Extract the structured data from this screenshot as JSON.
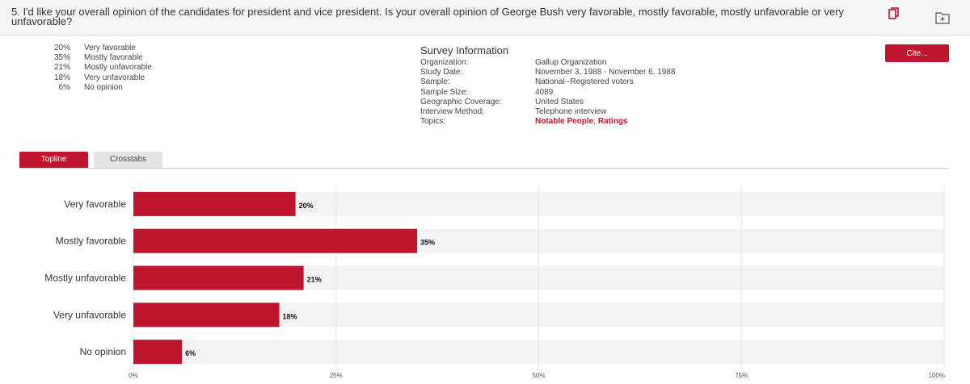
{
  "question": {
    "text": "5. I'd like your overall opinion of the candidates for president and vice president. Is your overall opinion of George Bush very favorable, mostly favorable, mostly unfavorable or very unfavorable?"
  },
  "icons": {
    "copy": "copy-icon",
    "folder": "folder-add-icon"
  },
  "results": [
    {
      "pct": "20%",
      "label": "Very favorable"
    },
    {
      "pct": "35%",
      "label": "Mostly favorable"
    },
    {
      "pct": "21%",
      "label": "Mostly unfavorable"
    },
    {
      "pct": "18%",
      "label": "Very unfavorable"
    },
    {
      "pct": "6%",
      "label": "No opinion"
    }
  ],
  "survey_info": {
    "title": "Survey Information",
    "rows": [
      {
        "key": "Organization:",
        "value": "Gallup Organization"
      },
      {
        "key": "Study Date:",
        "value": "November 3, 1988 - November 6, 1988"
      },
      {
        "key": "Sample:",
        "value": "National--Registered voters"
      },
      {
        "key": "Sample Size:",
        "value": "4089"
      },
      {
        "key": "Geographic Coverage:",
        "value": "United States"
      },
      {
        "key": "Interview Method:",
        "value": "Telephone interview"
      }
    ],
    "topics_key": "Topics:",
    "topics": [
      "Notable People",
      "Ratings"
    ],
    "topics_sep": "; "
  },
  "cite_label": "Cite...",
  "tabs": [
    {
      "label": "Topline",
      "active": true
    },
    {
      "label": "Crosstabs",
      "active": false
    }
  ],
  "colors": {
    "accent": "#c0152f",
    "track": "#f3f3f3",
    "grid": "#e6e6e6"
  },
  "chart_data": {
    "type": "bar",
    "orientation": "horizontal",
    "categories": [
      "Very favorable",
      "Mostly favorable",
      "Mostly unfavorable",
      "Very unfavorable",
      "No opinion"
    ],
    "values": [
      20,
      35,
      21,
      18,
      6
    ],
    "value_labels": [
      "20%",
      "35%",
      "21%",
      "18%",
      "6%"
    ],
    "xlim": [
      0,
      100
    ],
    "xticks": [
      0,
      25,
      50,
      75,
      100
    ],
    "xtick_labels": [
      "0%",
      "25%",
      "50%",
      "75%",
      "100%"
    ],
    "grid": true
  }
}
